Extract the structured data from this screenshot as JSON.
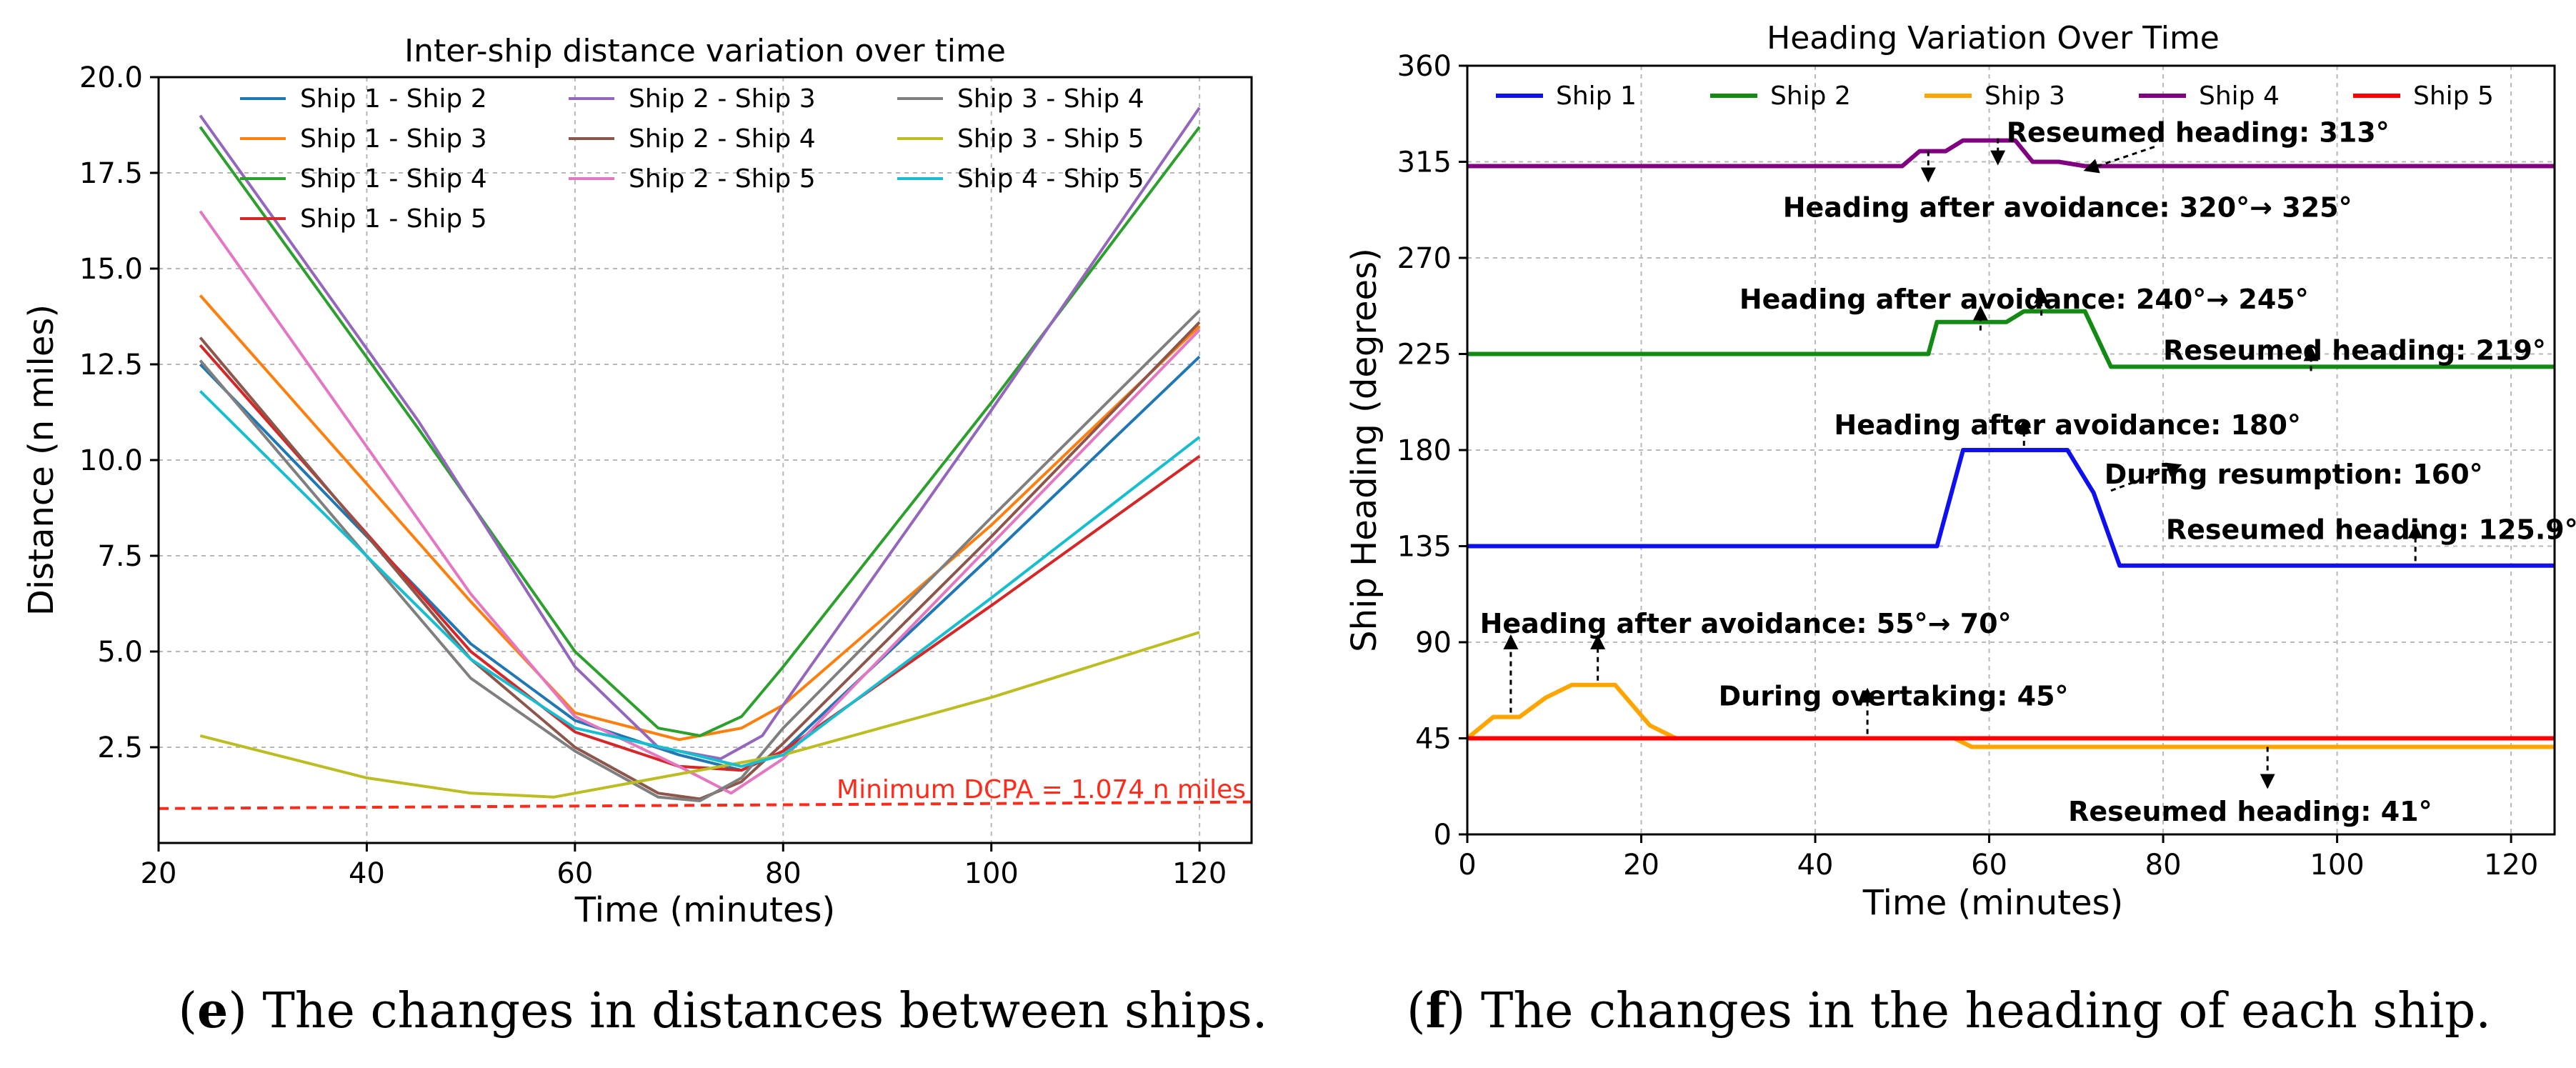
{
  "chart_data": [
    {
      "type": "line",
      "title": "Inter-ship distance variation over time",
      "xlabel": "Time (minutes)",
      "ylabel": "Distance (n miles)",
      "xlim": [
        20,
        125
      ],
      "ylim": [
        0,
        20
      ],
      "xticks": [
        20,
        40,
        60,
        80,
        100,
        120
      ],
      "yticks": [
        2.5,
        5.0,
        7.5,
        10.0,
        12.5,
        15.0,
        17.5,
        20.0
      ],
      "ytick_labels": [
        "2.5",
        "5.0",
        "7.5",
        "10.0",
        "12.5",
        "15.0",
        "17.5",
        "20.0"
      ],
      "legend_position": "top",
      "grid": true,
      "series": [
        {
          "name": "Ship 1 - Ship 2",
          "color": "#1f77b4",
          "points": [
            [
              24,
              12.5
            ],
            [
              50,
              5.2
            ],
            [
              60,
              3.2
            ],
            [
              70,
              2.3
            ],
            [
              76,
              1.9
            ],
            [
              80,
              2.4
            ],
            [
              100,
              7.5
            ],
            [
              120,
              12.7
            ]
          ]
        },
        {
          "name": "Ship 1 - Ship 3",
          "color": "#ff7f0e",
          "points": [
            [
              24,
              14.3
            ],
            [
              50,
              6.3
            ],
            [
              60,
              3.4
            ],
            [
              70,
              2.7
            ],
            [
              76,
              3.0
            ],
            [
              80,
              3.6
            ],
            [
              100,
              8.3
            ],
            [
              120,
              13.5
            ]
          ]
        },
        {
          "name": "Ship 1 - Ship 4",
          "color": "#2ca02c",
          "points": [
            [
              24,
              18.7
            ],
            [
              45,
              10.8
            ],
            [
              60,
              5.0
            ],
            [
              68,
              3.0
            ],
            [
              72,
              2.8
            ],
            [
              76,
              3.3
            ],
            [
              80,
              4.6
            ],
            [
              100,
              11.5
            ],
            [
              120,
              18.7
            ]
          ]
        },
        {
          "name": "Ship 1 - Ship 5",
          "color": "#d62728",
          "points": [
            [
              24,
              13.0
            ],
            [
              50,
              5.0
            ],
            [
              60,
              2.9
            ],
            [
              70,
              2.0
            ],
            [
              76,
              1.9
            ],
            [
              80,
              2.4
            ],
            [
              100,
              6.2
            ],
            [
              120,
              10.1
            ]
          ]
        },
        {
          "name": "Ship 2 - Ship 3",
          "color": "#9467bd",
          "points": [
            [
              24,
              19.0
            ],
            [
              45,
              11.0
            ],
            [
              60,
              4.6
            ],
            [
              68,
              2.5
            ],
            [
              74,
              2.2
            ],
            [
              78,
              2.8
            ],
            [
              80,
              3.6
            ],
            [
              100,
              11.3
            ],
            [
              120,
              19.2
            ]
          ]
        },
        {
          "name": "Ship 2 - Ship 4",
          "color": "#8c564b",
          "points": [
            [
              24,
              13.2
            ],
            [
              50,
              4.8
            ],
            [
              60,
              2.5
            ],
            [
              68,
              1.3
            ],
            [
              72,
              1.15
            ],
            [
              76,
              1.6
            ],
            [
              80,
              2.6
            ],
            [
              100,
              8.0
            ],
            [
              120,
              13.6
            ]
          ]
        },
        {
          "name": "Ship 2 - Ship 5",
          "color": "#e377c2",
          "points": [
            [
              24,
              16.5
            ],
            [
              50,
              6.5
            ],
            [
              60,
              3.3
            ],
            [
              70,
              2.0
            ],
            [
              75,
              1.3
            ],
            [
              80,
              2.2
            ],
            [
              100,
              7.8
            ],
            [
              120,
              13.4
            ]
          ]
        },
        {
          "name": "Ship 3 - Ship 4",
          "color": "#7f7f7f",
          "points": [
            [
              24,
              12.6
            ],
            [
              50,
              4.3
            ],
            [
              60,
              2.4
            ],
            [
              68,
              1.2
            ],
            [
              72,
              1.1
            ],
            [
              76,
              1.7
            ],
            [
              80,
              3.0
            ],
            [
              100,
              8.5
            ],
            [
              120,
              13.9
            ]
          ]
        },
        {
          "name": "Ship 3 - Ship 5",
          "color": "#bcbd22",
          "points": [
            [
              24,
              2.8
            ],
            [
              40,
              1.7
            ],
            [
              50,
              1.3
            ],
            [
              58,
              1.2
            ],
            [
              70,
              1.8
            ],
            [
              80,
              2.3
            ],
            [
              100,
              3.8
            ],
            [
              120,
              5.5
            ]
          ]
        },
        {
          "name": "Ship 4 - Ship 5",
          "color": "#17becf",
          "points": [
            [
              24,
              11.8
            ],
            [
              50,
              4.8
            ],
            [
              60,
              3.0
            ],
            [
              70,
              2.4
            ],
            [
              76,
              2.0
            ],
            [
              80,
              2.3
            ],
            [
              100,
              6.4
            ],
            [
              120,
              10.6
            ]
          ]
        }
      ],
      "reference_line": {
        "label": "Minimum DCPA = 1.074 n miles",
        "color": "#ff2a1a",
        "points": [
          [
            20,
            0.9
          ],
          [
            125,
            1.07
          ]
        ]
      },
      "caption": {
        "letter": "e",
        "open": "(",
        "close": ")",
        "text": " The changes in distances between ships."
      }
    },
    {
      "type": "line",
      "title": "Heading Variation Over Time",
      "xlabel": "Time (minutes)",
      "ylabel": "Ship Heading (degrees)",
      "xlim": [
        0,
        125
      ],
      "ylim": [
        0,
        360
      ],
      "xticks": [
        0,
        20,
        40,
        60,
        80,
        100,
        120
      ],
      "yticks": [
        0,
        45,
        90,
        135,
        180,
        225,
        270,
        315,
        360
      ],
      "legend_position": "top",
      "grid": true,
      "series": [
        {
          "name": "Ship 1",
          "color": "#1010ee",
          "points": [
            [
              0,
              135
            ],
            [
              54,
              135
            ],
            [
              57,
              180
            ],
            [
              69,
              180
            ],
            [
              72,
              160
            ],
            [
              75,
              125.9
            ],
            [
              125,
              125.9
            ]
          ]
        },
        {
          "name": "Ship 2",
          "color": "#138a13",
          "points": [
            [
              0,
              225
            ],
            [
              53,
              225
            ],
            [
              54,
              240
            ],
            [
              62,
              240
            ],
            [
              64,
              245
            ],
            [
              71,
              245
            ],
            [
              74,
              219
            ],
            [
              125,
              219
            ]
          ]
        },
        {
          "name": "Ship 3",
          "color": "#ffa500",
          "points": [
            [
              0,
              45
            ],
            [
              3,
              55
            ],
            [
              6,
              55
            ],
            [
              9,
              64
            ],
            [
              12,
              70
            ],
            [
              17,
              70
            ],
            [
              21,
              51
            ],
            [
              24,
              45
            ],
            [
              56,
              45
            ],
            [
              58,
              41
            ],
            [
              125,
              41
            ]
          ]
        },
        {
          "name": "Ship 4",
          "color": "#800080",
          "points": [
            [
              0,
              313
            ],
            [
              50,
              313
            ],
            [
              52,
              320
            ],
            [
              55,
              320
            ],
            [
              57,
              325
            ],
            [
              63,
              325
            ],
            [
              65,
              315
            ],
            [
              68,
              315
            ],
            [
              71,
              313
            ],
            [
              125,
              313
            ]
          ]
        },
        {
          "name": "Ship 5",
          "color": "#ff0000",
          "points": [
            [
              0,
              45
            ],
            [
              125,
              45
            ]
          ]
        }
      ],
      "annotations": [
        {
          "text": "Reseumed heading: 313°",
          "x": 84,
          "y": 329,
          "tip": [
            71,
            311
          ],
          "tail": [
            79,
            322
          ]
        },
        {
          "text": "Heading after avoidance: 320°→ 325°",
          "x": 69,
          "y": 294,
          "tip": [
            53,
            306
          ],
          "tail": [
            53,
            320
          ],
          "tip2": [
            61,
            314
          ],
          "tail2": [
            61,
            326
          ]
        },
        {
          "text": "Heading after avoidance: 240°→ 245°",
          "x": 64,
          "y": 251,
          "tip": [
            59,
            247
          ],
          "tail": [
            59,
            236
          ],
          "tip2": [
            66,
            255
          ],
          "tail2": [
            66,
            243
          ]
        },
        {
          "text": "Reseumed heading: 219°",
          "x": 102,
          "y": 227,
          "tip": [
            97,
            228
          ],
          "tail": [
            97,
            217
          ]
        },
        {
          "text": "Heading after avoidance: 180°",
          "x": 69,
          "y": 192,
          "tip": [
            64,
            194
          ],
          "tail": [
            64,
            182
          ]
        },
        {
          "text": "During resumption: 160°",
          "x": 95,
          "y": 169,
          "tip": [
            82,
            173
          ],
          "tail": [
            74,
            161
          ]
        },
        {
          "text": "Reseumed heading: 125.9°",
          "x": 104,
          "y": 143,
          "tip": [
            109,
            145
          ],
          "tail": [
            109,
            128
          ]
        },
        {
          "text": "Heading after avoidance: 55°→ 70°",
          "x": 32,
          "y": 99,
          "tip": [
            5,
            93
          ],
          "tail": [
            5,
            57
          ],
          "tip2": [
            15,
            93
          ],
          "tail2": [
            15,
            72
          ]
        },
        {
          "text": "During overtaking: 45°",
          "x": 49,
          "y": 65,
          "tip": [
            46,
            68
          ],
          "tail": [
            46,
            47
          ]
        },
        {
          "text": "Reseumed heading: 41°",
          "x": 90,
          "y": 11,
          "tip": [
            92,
            22
          ],
          "tail": [
            92,
            41
          ]
        }
      ],
      "caption": {
        "letter": "f",
        "open": "(",
        "close": ")",
        "text": " The changes in the heading of each ship."
      }
    }
  ]
}
